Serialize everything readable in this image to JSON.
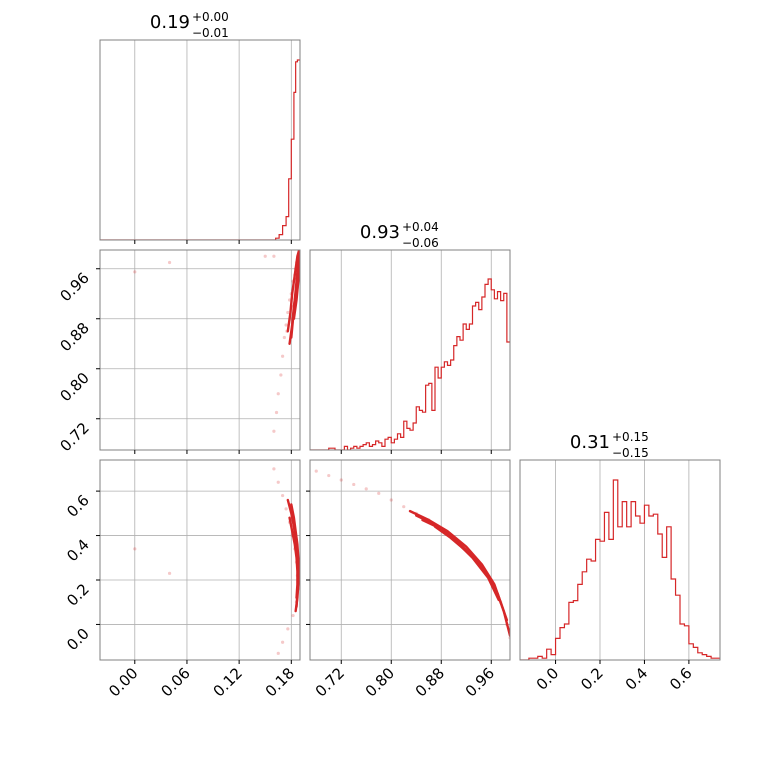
{
  "figure": {
    "type": "corner-plot",
    "accent_color": "#d62728",
    "grid": true
  },
  "chart_data": [
    {
      "type": "histogram",
      "panel": "diag-0",
      "title": {
        "median": "0.19",
        "plus": "+0.00",
        "minus": "−0.01"
      },
      "xlim": [
        -0.04,
        0.19
      ],
      "ylim": [
        0,
        1
      ],
      "x_ticks": [
        0.0,
        0.06,
        0.12,
        0.18
      ],
      "x_tick_labels": [],
      "y_tick_labels": [],
      "bins": [
        [
          -0.04,
          0.0
        ],
        [
          0.158,
          0.0
        ],
        [
          0.162,
          0.01
        ],
        [
          0.166,
          0.03
        ],
        [
          0.17,
          0.08
        ],
        [
          0.174,
          0.13
        ],
        [
          0.177,
          0.34
        ],
        [
          0.18,
          0.56
        ],
        [
          0.183,
          0.82
        ],
        [
          0.185,
          0.99
        ],
        [
          0.187,
          1.0
        ],
        [
          0.19,
          1.0
        ]
      ]
    },
    {
      "type": "scatter-contour",
      "panel": "row1-col0",
      "xlim": [
        -0.04,
        0.19
      ],
      "ylim": [
        0.67,
        0.99
      ],
      "x_ticks": [
        0.0,
        0.06,
        0.12,
        0.18
      ],
      "x_tick_labels": [],
      "y_ticks": [
        0.72,
        0.8,
        0.88,
        0.96
      ],
      "y_tick_labels": [
        "0.72",
        "0.80",
        "0.88",
        "0.96"
      ],
      "points": [
        [
          0.16,
          0.7
        ],
        [
          0.163,
          0.73
        ],
        [
          0.165,
          0.76
        ],
        [
          0.168,
          0.79
        ],
        [
          0.17,
          0.82
        ],
        [
          0.172,
          0.85
        ],
        [
          0.174,
          0.87
        ],
        [
          0.176,
          0.89
        ],
        [
          0.178,
          0.91
        ],
        [
          0.18,
          0.92
        ],
        [
          0.182,
          0.94
        ],
        [
          0.184,
          0.95
        ],
        [
          0.185,
          0.96
        ],
        [
          0.186,
          0.97
        ],
        [
          0.188,
          0.98
        ],
        [
          0.189,
          0.975
        ],
        [
          0.187,
          0.93
        ],
        [
          0.183,
          0.9
        ],
        [
          0.179,
          0.88
        ],
        [
          0.175,
          0.86
        ],
        [
          0.16,
          0.98
        ],
        [
          0.15,
          0.98
        ],
        [
          0.0,
          0.955
        ],
        [
          0.04,
          0.97
        ]
      ],
      "contours": [
        [
          [
            0.18,
            0.85
          ],
          [
            0.182,
            0.88
          ],
          [
            0.184,
            0.91
          ],
          [
            0.186,
            0.94
          ],
          [
            0.188,
            0.97
          ],
          [
            0.189,
            0.985
          ]
        ],
        [
          [
            0.176,
            0.86
          ],
          [
            0.179,
            0.89
          ],
          [
            0.181,
            0.92
          ],
          [
            0.184,
            0.95
          ],
          [
            0.187,
            0.98
          ],
          [
            0.189,
            0.99
          ]
        ],
        [
          [
            0.178,
            0.84
          ],
          [
            0.181,
            0.87
          ],
          [
            0.183,
            0.9
          ],
          [
            0.186,
            0.93
          ],
          [
            0.188,
            0.96
          ],
          [
            0.189,
            0.98
          ]
        ],
        [
          [
            0.183,
            0.88
          ],
          [
            0.186,
            0.91
          ],
          [
            0.188,
            0.94
          ],
          [
            0.189,
            0.96
          ]
        ]
      ]
    },
    {
      "type": "histogram",
      "panel": "diag-1",
      "title": {
        "median": "0.93",
        "plus": "+0.04",
        "minus": "−0.06"
      },
      "xlim": [
        0.67,
        0.99
      ],
      "ylim": [
        0,
        1
      ],
      "x_ticks": [
        0.72,
        0.8,
        0.88,
        0.96
      ],
      "x_tick_labels": [],
      "y_tick_labels": [],
      "bins": [
        [
          0.67,
          0.0
        ],
        [
          0.675,
          0.0
        ],
        [
          0.68,
          0.0
        ],
        [
          0.685,
          0.0
        ],
        [
          0.69,
          0.0
        ],
        [
          0.695,
          0.0
        ],
        [
          0.7,
          0.01
        ],
        [
          0.705,
          0.01
        ],
        [
          0.71,
          0.0
        ],
        [
          0.715,
          0.0
        ],
        [
          0.72,
          0.0
        ],
        [
          0.725,
          0.02
        ],
        [
          0.73,
          0.0
        ],
        [
          0.735,
          0.01
        ],
        [
          0.74,
          0.02
        ],
        [
          0.745,
          0.01
        ],
        [
          0.75,
          0.02
        ],
        [
          0.755,
          0.03
        ],
        [
          0.76,
          0.04
        ],
        [
          0.765,
          0.02
        ],
        [
          0.77,
          0.03
        ],
        [
          0.775,
          0.05
        ],
        [
          0.78,
          0.04
        ],
        [
          0.785,
          0.02
        ],
        [
          0.79,
          0.06
        ],
        [
          0.795,
          0.07
        ],
        [
          0.8,
          0.04
        ],
        [
          0.805,
          0.06
        ],
        [
          0.81,
          0.09
        ],
        [
          0.815,
          0.07
        ],
        [
          0.82,
          0.16
        ],
        [
          0.825,
          0.12
        ],
        [
          0.83,
          0.11
        ],
        [
          0.835,
          0.15
        ],
        [
          0.84,
          0.24
        ],
        [
          0.845,
          0.22
        ],
        [
          0.85,
          0.21
        ],
        [
          0.855,
          0.36
        ],
        [
          0.86,
          0.37
        ],
        [
          0.865,
          0.22
        ],
        [
          0.87,
          0.46
        ],
        [
          0.875,
          0.4
        ],
        [
          0.88,
          0.46
        ],
        [
          0.885,
          0.49
        ],
        [
          0.89,
          0.47
        ],
        [
          0.895,
          0.5
        ],
        [
          0.9,
          0.58
        ],
        [
          0.905,
          0.63
        ],
        [
          0.91,
          0.61
        ],
        [
          0.915,
          0.7
        ],
        [
          0.92,
          0.67
        ],
        [
          0.925,
          0.7
        ],
        [
          0.93,
          0.8
        ],
        [
          0.935,
          0.82
        ],
        [
          0.94,
          0.78
        ],
        [
          0.945,
          0.85
        ],
        [
          0.95,
          0.92
        ],
        [
          0.955,
          0.95
        ],
        [
          0.96,
          0.89
        ],
        [
          0.965,
          0.84
        ],
        [
          0.97,
          0.88
        ],
        [
          0.975,
          0.83
        ],
        [
          0.98,
          0.87
        ],
        [
          0.985,
          0.6
        ],
        [
          0.99,
          0.6
        ]
      ]
    },
    {
      "type": "scatter-contour",
      "panel": "row2-col0",
      "xlim": [
        -0.04,
        0.19
      ],
      "ylim": [
        -0.16,
        0.74
      ],
      "x_ticks": [
        0.0,
        0.06,
        0.12,
        0.18
      ],
      "x_tick_labels": [
        "0.00",
        "0.06",
        "0.12",
        "0.18"
      ],
      "y_ticks": [
        0.0,
        0.2,
        0.4,
        0.6
      ],
      "y_tick_labels": [
        "0.0",
        "0.2",
        "0.4",
        "0.6"
      ],
      "points": [
        [
          0.16,
          0.7
        ],
        [
          0.165,
          0.64
        ],
        [
          0.17,
          0.58
        ],
        [
          0.174,
          0.52
        ],
        [
          0.178,
          0.46
        ],
        [
          0.181,
          0.4
        ],
        [
          0.184,
          0.34
        ],
        [
          0.186,
          0.28
        ],
        [
          0.187,
          0.22
        ],
        [
          0.188,
          0.16
        ],
        [
          0.186,
          0.1
        ],
        [
          0.182,
          0.04
        ],
        [
          0.176,
          -0.02
        ],
        [
          0.17,
          -0.08
        ],
        [
          0.165,
          -0.13
        ],
        [
          0.0,
          0.34
        ],
        [
          0.04,
          0.23
        ]
      ],
      "contours": [
        [
          [
            0.176,
            0.56
          ],
          [
            0.18,
            0.5
          ],
          [
            0.183,
            0.44
          ],
          [
            0.185,
            0.38
          ],
          [
            0.187,
            0.32
          ],
          [
            0.188,
            0.26
          ],
          [
            0.188,
            0.2
          ],
          [
            0.187,
            0.14
          ],
          [
            0.186,
            0.08
          ]
        ],
        [
          [
            0.18,
            0.54
          ],
          [
            0.183,
            0.48
          ],
          [
            0.185,
            0.42
          ],
          [
            0.187,
            0.36
          ],
          [
            0.188,
            0.3
          ],
          [
            0.189,
            0.24
          ],
          [
            0.188,
            0.18
          ],
          [
            0.187,
            0.12
          ],
          [
            0.185,
            0.06
          ]
        ],
        [
          [
            0.178,
            0.48
          ],
          [
            0.181,
            0.42
          ],
          [
            0.184,
            0.36
          ],
          [
            0.186,
            0.3
          ],
          [
            0.187,
            0.24
          ],
          [
            0.187,
            0.18
          ],
          [
            0.186,
            0.12
          ]
        ]
      ]
    },
    {
      "type": "scatter-contour",
      "panel": "row2-col1",
      "xlim": [
        0.67,
        0.99
      ],
      "ylim": [
        -0.16,
        0.74
      ],
      "x_ticks": [
        0.72,
        0.8,
        0.88,
        0.96
      ],
      "x_tick_labels": [
        "0.72",
        "0.80",
        "0.88",
        "0.96"
      ],
      "y_ticks": [
        0.0,
        0.2,
        0.4,
        0.6
      ],
      "y_tick_labels": [],
      "points": [
        [
          0.68,
          0.69
        ],
        [
          0.7,
          0.67
        ],
        [
          0.72,
          0.65
        ],
        [
          0.74,
          0.63
        ],
        [
          0.76,
          0.61
        ],
        [
          0.78,
          0.59
        ],
        [
          0.8,
          0.56
        ],
        [
          0.82,
          0.53
        ],
        [
          0.84,
          0.5
        ],
        [
          0.86,
          0.47
        ],
        [
          0.88,
          0.43
        ],
        [
          0.9,
          0.39
        ],
        [
          0.92,
          0.34
        ],
        [
          0.94,
          0.28
        ],
        [
          0.96,
          0.2
        ],
        [
          0.975,
          0.1
        ],
        [
          0.985,
          0.0
        ],
        [
          0.99,
          -0.06
        ]
      ],
      "contours": [
        [
          [
            0.83,
            0.51
          ],
          [
            0.86,
            0.47
          ],
          [
            0.89,
            0.42
          ],
          [
            0.92,
            0.35
          ],
          [
            0.945,
            0.27
          ],
          [
            0.965,
            0.18
          ],
          [
            0.98,
            0.06
          ],
          [
            0.99,
            -0.05
          ]
        ],
        [
          [
            0.84,
            0.49
          ],
          [
            0.87,
            0.45
          ],
          [
            0.9,
            0.39
          ],
          [
            0.925,
            0.32
          ],
          [
            0.95,
            0.24
          ],
          [
            0.97,
            0.14
          ],
          [
            0.985,
            0.02
          ]
        ],
        [
          [
            0.85,
            0.47
          ],
          [
            0.88,
            0.43
          ],
          [
            0.905,
            0.37
          ],
          [
            0.93,
            0.3
          ],
          [
            0.955,
            0.21
          ],
          [
            0.972,
            0.11
          ]
        ],
        [
          [
            0.87,
            0.44
          ],
          [
            0.895,
            0.39
          ],
          [
            0.92,
            0.33
          ],
          [
            0.945,
            0.26
          ],
          [
            0.965,
            0.17
          ]
        ]
      ]
    },
    {
      "type": "histogram",
      "panel": "diag-2",
      "title": {
        "median": "0.31",
        "plus": "+0.15",
        "minus": "−0.15"
      },
      "xlim": [
        -0.16,
        0.74
      ],
      "ylim": [
        0,
        1
      ],
      "x_ticks": [
        0.0,
        0.2,
        0.4,
        0.6
      ],
      "x_tick_labels": [
        "0.0",
        "0.2",
        "0.4",
        "0.6"
      ],
      "y_tick_labels": [],
      "bins": [
        [
          -0.16,
          0.0
        ],
        [
          -0.14,
          0.0
        ],
        [
          -0.12,
          0.01
        ],
        [
          -0.1,
          0.01
        ],
        [
          -0.08,
          0.02
        ],
        [
          -0.06,
          0.01
        ],
        [
          -0.04,
          0.06
        ],
        [
          -0.02,
          0.03
        ],
        [
          0.0,
          0.12
        ],
        [
          0.02,
          0.18
        ],
        [
          0.04,
          0.2
        ],
        [
          0.06,
          0.32
        ],
        [
          0.08,
          0.33
        ],
        [
          0.1,
          0.42
        ],
        [
          0.12,
          0.49
        ],
        [
          0.14,
          0.56
        ],
        [
          0.16,
          0.55
        ],
        [
          0.18,
          0.67
        ],
        [
          0.2,
          0.66
        ],
        [
          0.22,
          0.82
        ],
        [
          0.24,
          0.67
        ],
        [
          0.26,
          1.0
        ],
        [
          0.28,
          0.74
        ],
        [
          0.3,
          0.88
        ],
        [
          0.32,
          0.74
        ],
        [
          0.34,
          0.88
        ],
        [
          0.36,
          0.8
        ],
        [
          0.38,
          0.76
        ],
        [
          0.4,
          0.86
        ],
        [
          0.42,
          0.8
        ],
        [
          0.44,
          0.81
        ],
        [
          0.46,
          0.7
        ],
        [
          0.48,
          0.57
        ],
        [
          0.5,
          0.74
        ],
        [
          0.52,
          0.45
        ],
        [
          0.54,
          0.36
        ],
        [
          0.56,
          0.2
        ],
        [
          0.58,
          0.19
        ],
        [
          0.6,
          0.09
        ],
        [
          0.62,
          0.07
        ],
        [
          0.64,
          0.04
        ],
        [
          0.66,
          0.03
        ],
        [
          0.68,
          0.02
        ],
        [
          0.7,
          0.01
        ],
        [
          0.72,
          0.01
        ]
      ]
    }
  ]
}
